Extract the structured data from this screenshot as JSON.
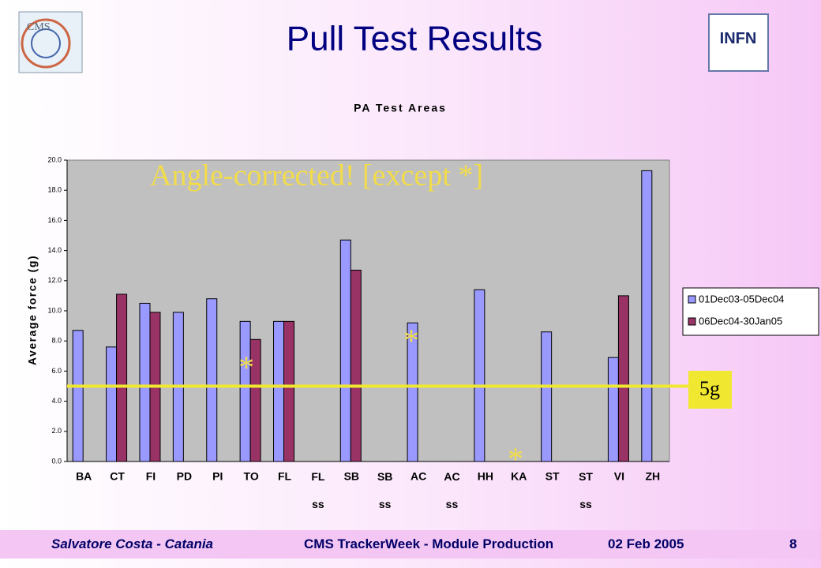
{
  "header": {
    "title": "Pull Test Results"
  },
  "footer": {
    "author": "Salvatore Costa - Catania",
    "event": "CMS TrackerWeek - Module Production",
    "date": "02 Feb 2005",
    "page": "8"
  },
  "chart_data": {
    "type": "bar",
    "title": "PA Test Areas",
    "y_label": "Average force (g)",
    "categories": [
      "BA",
      "CT",
      "FI",
      "PD",
      "PI",
      "TO",
      "FL",
      "FL ss",
      "SB",
      "SB ss",
      "AC",
      "AC ss",
      "HH",
      "KA",
      "ST",
      "ST ss",
      "VI",
      "ZH"
    ],
    "series": [
      {
        "name": "01Dec03-05Dec04",
        "color": "#9999ff",
        "values": [
          8.7,
          7.6,
          10.5,
          9.9,
          10.8,
          9.3,
          9.3,
          null,
          14.7,
          null,
          9.2,
          null,
          11.4,
          null,
          8.6,
          null,
          6.9,
          19.3
        ]
      },
      {
        "name": "06Dec04-30Jan05",
        "color": "#993366",
        "values": [
          null,
          11.1,
          9.9,
          null,
          null,
          8.1,
          9.3,
          null,
          12.7,
          null,
          null,
          null,
          null,
          null,
          null,
          null,
          11.0,
          null
        ]
      }
    ],
    "ylim": [
      0,
      20
    ],
    "yticks": [
      {
        "value": 0,
        "label": "0.0"
      },
      {
        "value": 2,
        "label": "2.0"
      },
      {
        "value": 4,
        "label": "4.0"
      },
      {
        "value": 6,
        "label": "6.0"
      },
      {
        "value": 8,
        "label": "8.0"
      },
      {
        "value": 10,
        "label": "10.0"
      },
      {
        "value": 12,
        "label": "12.0"
      },
      {
        "value": 14,
        "label": "14.0"
      },
      {
        "value": 16,
        "label": "16.0"
      },
      {
        "value": 18,
        "label": "18.0"
      },
      {
        "value": 20,
        "label": "20.0"
      }
    ],
    "legend": "right",
    "threshold": {
      "value": 5,
      "label": "5g"
    },
    "annotation": "Angle-corrected! [except *]",
    "asterisks": [
      "*",
      "*",
      "*"
    ]
  }
}
